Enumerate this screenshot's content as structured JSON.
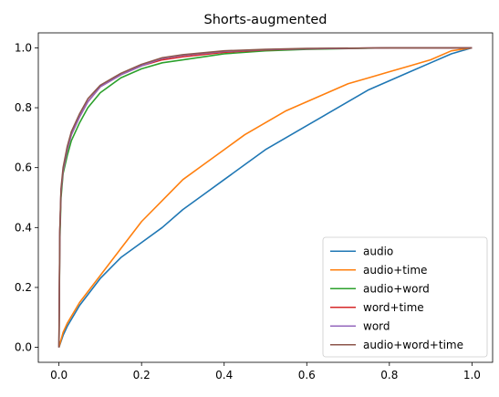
{
  "chart_data": {
    "type": "line",
    "title": "Shorts-augmented",
    "xlabel": "",
    "ylabel": "",
    "xlim": [
      -0.05,
      1.05
    ],
    "ylim": [
      -0.05,
      1.05
    ],
    "x_ticks": [
      0.0,
      0.2,
      0.4,
      0.6,
      0.8,
      1.0
    ],
    "y_ticks": [
      0.0,
      0.2,
      0.4,
      0.6,
      0.8,
      1.0
    ],
    "x_tick_labels": [
      "0.0",
      "0.2",
      "0.4",
      "0.6",
      "0.8",
      "1.0"
    ],
    "y_tick_labels": [
      "0.0",
      "0.2",
      "0.4",
      "0.6",
      "0.8",
      "1.0"
    ],
    "grid": false,
    "legend_position": "bottom-right",
    "series": [
      {
        "name": "audio",
        "color": "#1f77b4",
        "points": [
          [
            0,
            0
          ],
          [
            0.01,
            0.04
          ],
          [
            0.02,
            0.07
          ],
          [
            0.05,
            0.14
          ],
          [
            0.1,
            0.23
          ],
          [
            0.15,
            0.3
          ],
          [
            0.2,
            0.35
          ],
          [
            0.25,
            0.4
          ],
          [
            0.3,
            0.46
          ],
          [
            0.35,
            0.51
          ],
          [
            0.4,
            0.56
          ],
          [
            0.45,
            0.61
          ],
          [
            0.5,
            0.66
          ],
          [
            0.55,
            0.7
          ],
          [
            0.6,
            0.74
          ],
          [
            0.65,
            0.78
          ],
          [
            0.7,
            0.82
          ],
          [
            0.75,
            0.86
          ],
          [
            0.8,
            0.89
          ],
          [
            0.85,
            0.92
          ],
          [
            0.9,
            0.95
          ],
          [
            0.95,
            0.98
          ],
          [
            1.0,
            1.0
          ]
        ]
      },
      {
        "name": "audio+time",
        "color": "#ff7f0e",
        "points": [
          [
            0,
            0
          ],
          [
            0.01,
            0.05
          ],
          [
            0.02,
            0.08
          ],
          [
            0.05,
            0.15
          ],
          [
            0.1,
            0.24
          ],
          [
            0.15,
            0.33
          ],
          [
            0.2,
            0.42
          ],
          [
            0.25,
            0.49
          ],
          [
            0.3,
            0.56
          ],
          [
            0.35,
            0.61
          ],
          [
            0.4,
            0.66
          ],
          [
            0.45,
            0.71
          ],
          [
            0.5,
            0.75
          ],
          [
            0.55,
            0.79
          ],
          [
            0.6,
            0.82
          ],
          [
            0.65,
            0.85
          ],
          [
            0.7,
            0.88
          ],
          [
            0.75,
            0.9
          ],
          [
            0.8,
            0.92
          ],
          [
            0.85,
            0.94
          ],
          [
            0.9,
            0.96
          ],
          [
            0.95,
            0.99
          ],
          [
            1.0,
            1.0
          ]
        ]
      },
      {
        "name": "audio+word",
        "color": "#2ca02c",
        "points": [
          [
            0,
            0
          ],
          [
            0.002,
            0.35
          ],
          [
            0.005,
            0.5
          ],
          [
            0.01,
            0.58
          ],
          [
            0.02,
            0.64
          ],
          [
            0.03,
            0.69
          ],
          [
            0.05,
            0.75
          ],
          [
            0.07,
            0.8
          ],
          [
            0.1,
            0.85
          ],
          [
            0.15,
            0.9
          ],
          [
            0.2,
            0.93
          ],
          [
            0.25,
            0.95
          ],
          [
            0.3,
            0.96
          ],
          [
            0.4,
            0.98
          ],
          [
            0.5,
            0.99
          ],
          [
            0.6,
            0.995
          ],
          [
            0.8,
            1.0
          ],
          [
            1.0,
            1.0
          ]
        ]
      },
      {
        "name": "word+time",
        "color": "#d62728",
        "points": [
          [
            0,
            0
          ],
          [
            0.002,
            0.38
          ],
          [
            0.005,
            0.52
          ],
          [
            0.01,
            0.59
          ],
          [
            0.02,
            0.66
          ],
          [
            0.03,
            0.71
          ],
          [
            0.05,
            0.77
          ],
          [
            0.07,
            0.82
          ],
          [
            0.1,
            0.87
          ],
          [
            0.15,
            0.91
          ],
          [
            0.2,
            0.94
          ],
          [
            0.25,
            0.96
          ],
          [
            0.3,
            0.97
          ],
          [
            0.4,
            0.985
          ],
          [
            0.5,
            0.993
          ],
          [
            0.6,
            0.997
          ],
          [
            0.8,
            1.0
          ],
          [
            1.0,
            1.0
          ]
        ]
      },
      {
        "name": "word",
        "color": "#9467bd",
        "points": [
          [
            0,
            0
          ],
          [
            0.002,
            0.38
          ],
          [
            0.005,
            0.52
          ],
          [
            0.01,
            0.59
          ],
          [
            0.02,
            0.66
          ],
          [
            0.03,
            0.71
          ],
          [
            0.05,
            0.77
          ],
          [
            0.07,
            0.82
          ],
          [
            0.1,
            0.87
          ],
          [
            0.15,
            0.91
          ],
          [
            0.2,
            0.94
          ],
          [
            0.25,
            0.965
          ],
          [
            0.3,
            0.975
          ],
          [
            0.4,
            0.988
          ],
          [
            0.5,
            0.994
          ],
          [
            0.6,
            0.997
          ],
          [
            0.8,
            1.0
          ],
          [
            1.0,
            1.0
          ]
        ]
      },
      {
        "name": "audio+word+time",
        "color": "#8c564b",
        "points": [
          [
            0,
            0
          ],
          [
            0.002,
            0.39
          ],
          [
            0.005,
            0.53
          ],
          [
            0.01,
            0.6
          ],
          [
            0.02,
            0.67
          ],
          [
            0.03,
            0.72
          ],
          [
            0.05,
            0.78
          ],
          [
            0.07,
            0.83
          ],
          [
            0.1,
            0.875
          ],
          [
            0.15,
            0.915
          ],
          [
            0.2,
            0.945
          ],
          [
            0.25,
            0.967
          ],
          [
            0.3,
            0.977
          ],
          [
            0.4,
            0.99
          ],
          [
            0.5,
            0.995
          ],
          [
            0.6,
            0.998
          ],
          [
            0.8,
            1.0
          ],
          [
            1.0,
            1.0
          ]
        ]
      }
    ]
  }
}
